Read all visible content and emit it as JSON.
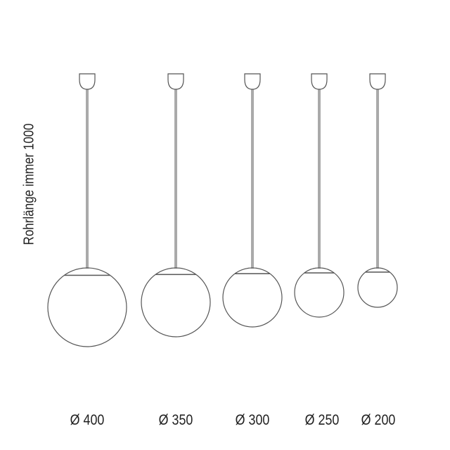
{
  "side_note": "Rohrlänge immer 1000",
  "line_color": "#555555",
  "lamps": [
    {
      "label": "Ø 400",
      "diameter": 400
    },
    {
      "label": "Ø 350",
      "diameter": 350
    },
    {
      "label": "Ø 300",
      "diameter": 300
    },
    {
      "label": "Ø 250",
      "diameter": 250
    },
    {
      "label": "Ø 200",
      "diameter": 200
    }
  ]
}
